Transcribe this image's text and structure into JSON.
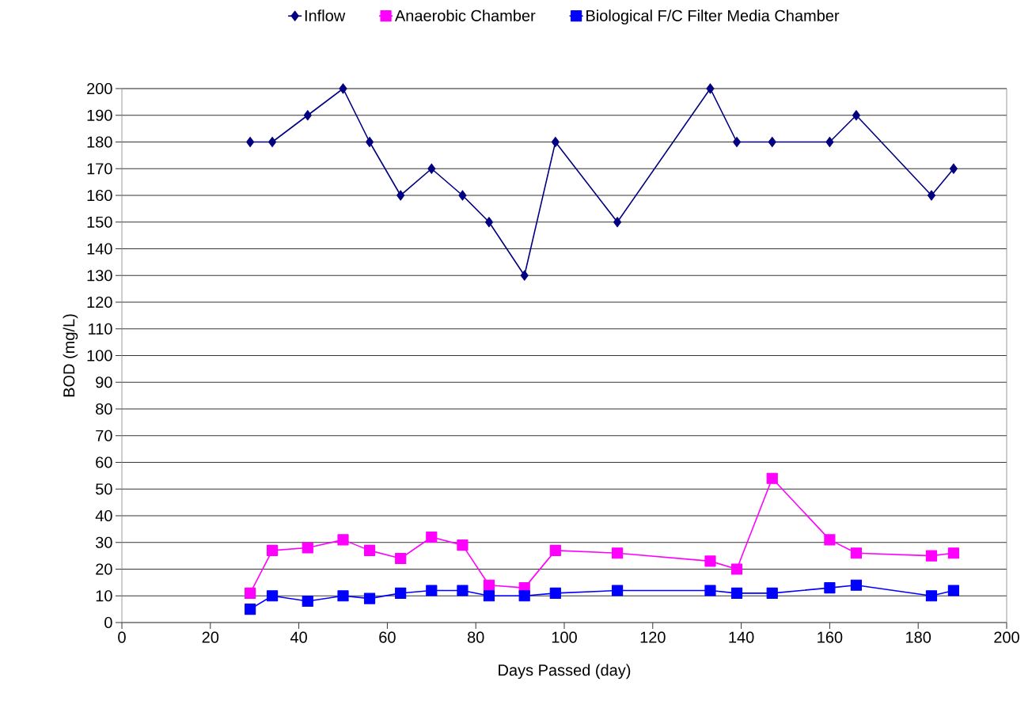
{
  "chart_data": {
    "type": "line",
    "xlabel": "Days Passed (day)",
    "ylabel": "BOD (mg/L)",
    "x": [
      29,
      34,
      42,
      50,
      56,
      63,
      70,
      77,
      83,
      91,
      98,
      112,
      133,
      139,
      147,
      160,
      166,
      183,
      188
    ],
    "series": [
      {
        "name": "Inflow",
        "color": "#000080",
        "marker": "diamond",
        "values": [
          180,
          180,
          190,
          200,
          180,
          160,
          170,
          160,
          150,
          130,
          180,
          150,
          200,
          180,
          180,
          180,
          190,
          160,
          170
        ]
      },
      {
        "name": "Anaerobic Chamber",
        "color": "#ff00ff",
        "marker": "square",
        "values": [
          11,
          27,
          28,
          31,
          27,
          24,
          32,
          29,
          14,
          13,
          27,
          26,
          23,
          20,
          54,
          31,
          26,
          25,
          26
        ]
      },
      {
        "name": "Biological F/C Filter Media Chamber",
        "color": "#0000ff",
        "marker": "square",
        "values": [
          5,
          10,
          8,
          10,
          9,
          11,
          12,
          12,
          10,
          10,
          11,
          12,
          12,
          11,
          11,
          13,
          14,
          10,
          12
        ]
      }
    ],
    "xlim": [
      0,
      200
    ],
    "xticks": [
      0,
      20,
      40,
      60,
      80,
      100,
      120,
      140,
      160,
      180,
      200
    ],
    "ylim": [
      0,
      200
    ],
    "yticks": [
      0,
      10,
      20,
      30,
      40,
      50,
      60,
      70,
      80,
      90,
      100,
      110,
      120,
      130,
      140,
      150,
      160,
      170,
      180,
      190,
      200
    ],
    "grid": "y",
    "legend": "top"
  }
}
